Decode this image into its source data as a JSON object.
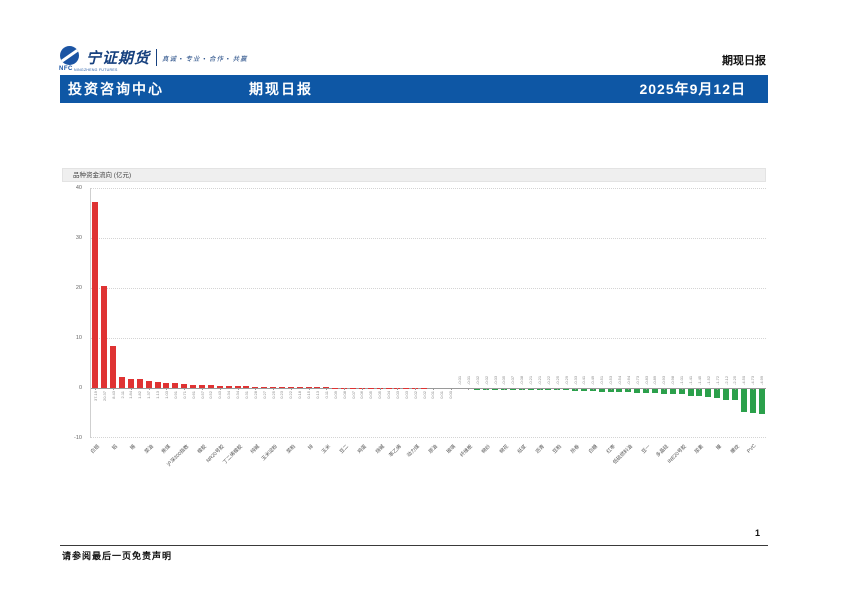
{
  "page": {
    "top_right_label": "期现日报",
    "footer_disclaimer": "请参阅最后一页免责声明",
    "page_number": "1"
  },
  "logo": {
    "company": "宁证期货",
    "abbr": "NFC",
    "subtext": "NINGZHENG FUTURES",
    "tagline": "真诚 • 专业 • 合作 • 共赢"
  },
  "header": {
    "dept": "投资咨询中心",
    "report": "期现日报",
    "date": "2025年9月12日"
  },
  "chart_data": {
    "type": "bar",
    "title": "品种资金流向 (亿元)",
    "xlabel": "",
    "ylabel": "亿元",
    "ylim": [
      -10,
      40
    ],
    "yticks": [
      40,
      30,
      20,
      10,
      0,
      -10
    ],
    "grid": "dotted-horizontal",
    "legend": "none",
    "positive_color": "#df3333",
    "negative_color": "#2ba04b",
    "category_tick_step": 2,
    "categories": [
      "白银",
      "铝",
      "锡",
      "菜油",
      "焦煤",
      "沪深300指数",
      "橡胶",
      "NR20号胶",
      "丁二烯橡胶",
      "纯碱",
      "玉米淀粉",
      "菜粕",
      "锌",
      "玉米",
      "豆二",
      "鸡蛋",
      "烧碱",
      "苯乙烯",
      "动力煤",
      "原油",
      "玻璃",
      "纤维板",
      "棉纱",
      "棉花",
      "纸浆",
      "沥青",
      "豆粕",
      "热卷",
      "白糖",
      "红枣",
      "低硫燃料油",
      "豆一",
      "多晶硅",
      "INE20号胶",
      "尿素",
      "镍",
      "螺纹",
      "PVC"
    ],
    "values": [
      37.19,
      20.37,
      8.43,
      2.11,
      1.84,
      1.82,
      1.37,
      1.13,
      1.03,
      0.91,
      0.71,
      0.61,
      0.57,
      0.52,
      0.43,
      0.34,
      0.34,
      0.31,
      0.28,
      0.27,
      0.25,
      0.23,
      0.22,
      0.18,
      0.15,
      0.13,
      0.11,
      0.09,
      0.08,
      0.07,
      0.06,
      0.05,
      0.05,
      0.04,
      0.03,
      0.03,
      0.02,
      0.02,
      0.01,
      0.01,
      0.0,
      -0.01,
      -0.01,
      -0.02,
      -0.02,
      -0.03,
      -0.05,
      -0.07,
      -0.08,
      -0.21,
      -0.21,
      -0.22,
      -0.25,
      -0.29,
      -0.33,
      -0.41,
      -0.49,
      -0.51,
      -0.53,
      -0.54,
      -0.64,
      -0.73,
      -0.83,
      -0.89,
      -0.93,
      -0.98,
      -1.01,
      -1.41,
      -1.45,
      -1.52,
      -1.72,
      -2.12,
      -2.25,
      -4.5,
      -4.73,
      -4.99
    ]
  }
}
